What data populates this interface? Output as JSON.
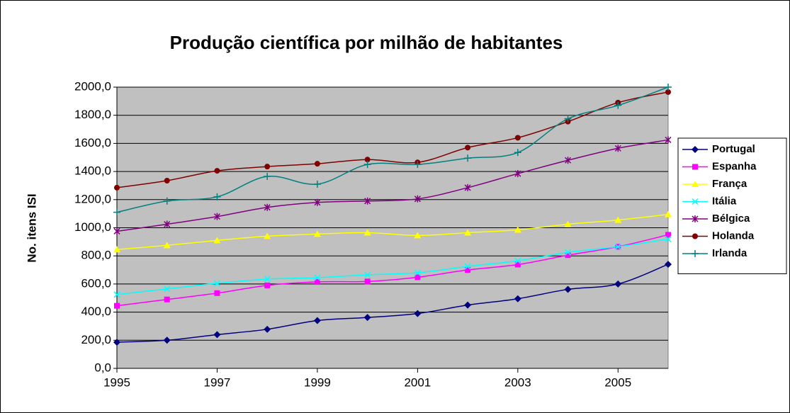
{
  "chart_data": {
    "type": "line",
    "title": "Produção científica por milhão de habitantes",
    "y_label": "No. itens ISI",
    "x": [
      1995,
      1996,
      1997,
      1998,
      1999,
      2000,
      2001,
      2002,
      2003,
      2004,
      2005,
      2006
    ],
    "xlim": [
      1995,
      2006
    ],
    "xticks": [
      1995,
      1997,
      1999,
      2001,
      2003,
      2005
    ],
    "ylim": [
      0,
      2000
    ],
    "yticks": [
      {
        "value": 0,
        "label": "0,0"
      },
      {
        "value": 200,
        "label": "200,0"
      },
      {
        "value": 400,
        "label": "400,0"
      },
      {
        "value": 600,
        "label": "600,0"
      },
      {
        "value": 800,
        "label": "800,0"
      },
      {
        "value": 1000,
        "label": "1000,0"
      },
      {
        "value": 1200,
        "label": "1200,0"
      },
      {
        "value": 1400,
        "label": "1400,0"
      },
      {
        "value": 1600,
        "label": "1600,0"
      },
      {
        "value": 1800,
        "label": "1800,0"
      },
      {
        "value": 2000,
        "label": "2000,0"
      }
    ],
    "grid": true,
    "legend": "right",
    "series": [
      {
        "name": "Portugal",
        "color": "#000080",
        "marker": "diamond",
        "values": [
          186,
          200,
          240,
          278,
          340,
          362,
          390,
          450,
          495,
          562,
          600,
          740
        ]
      },
      {
        "name": "Espanha",
        "color": "#ff00ff",
        "marker": "square",
        "values": [
          445,
          490,
          535,
          590,
          615,
          618,
          648,
          700,
          738,
          805,
          865,
          950
        ]
      },
      {
        "name": "França",
        "color": "#ffff00",
        "marker": "triangle",
        "values": [
          845,
          875,
          910,
          940,
          955,
          965,
          945,
          965,
          985,
          1025,
          1055,
          1095
        ]
      },
      {
        "name": "Itália",
        "color": "#00ffff",
        "marker": "x",
        "values": [
          525,
          565,
          605,
          635,
          645,
          665,
          680,
          725,
          765,
          825,
          865,
          920
        ]
      },
      {
        "name": "Bélgica",
        "color": "#800080",
        "marker": "star",
        "values": [
          975,
          1025,
          1080,
          1145,
          1180,
          1190,
          1205,
          1285,
          1385,
          1480,
          1565,
          1625
        ]
      },
      {
        "name": "Holanda",
        "color": "#800000",
        "marker": "circle",
        "values": [
          1285,
          1335,
          1405,
          1435,
          1455,
          1485,
          1465,
          1570,
          1640,
          1755,
          1890,
          1965
        ]
      },
      {
        "name": "Irlanda",
        "color": "#008080",
        "marker": "plus",
        "values": [
          1110,
          1190,
          1220,
          1365,
          1310,
          1450,
          1450,
          1495,
          1535,
          1775,
          1870,
          2000
        ]
      }
    ]
  }
}
